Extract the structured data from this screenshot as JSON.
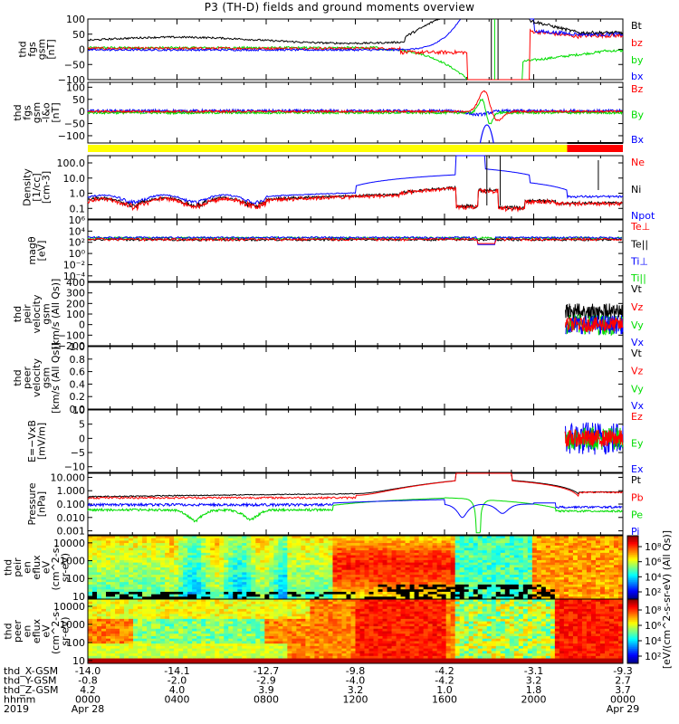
{
  "title": "P3 (TH-D) fields and ground moments overview",
  "colors": {
    "black": "#000000",
    "red": "#ff0000",
    "green": "#00dd00",
    "blue": "#0000ff",
    "yellow": "#ffff00"
  },
  "chart_data": [
    {
      "type": "line",
      "name": "fgs",
      "ylabel": [
        "thd",
        "fgs",
        "gsm",
        "[nT]"
      ],
      "ylim": [
        -100,
        100
      ],
      "yticks": [
        "100",
        "50",
        "0",
        "−50",
        "−100"
      ],
      "legend": [
        {
          "label": "Bt",
          "color": "black"
        },
        {
          "label": "bz",
          "color": "red"
        },
        {
          "label": "by",
          "color": "green"
        },
        {
          "label": "bx",
          "color": "blue"
        }
      ]
    },
    {
      "type": "line",
      "name": "fgs-dsl",
      "ylabel": [
        "thd",
        "fgs",
        "gsm",
        "-l&o",
        "[nT]"
      ],
      "ylim": [
        -130,
        120
      ],
      "yticks": [
        "100",
        "50",
        "0",
        "−50",
        "−100"
      ],
      "legend": [
        {
          "label": "Bz",
          "color": "red"
        },
        {
          "label": "By",
          "color": "green"
        },
        {
          "label": "Bx",
          "color": "blue"
        }
      ]
    },
    {
      "type": "line",
      "name": "density",
      "yscale": "log",
      "ylabel": [
        "Density",
        "[1/cc]",
        "[cm-3]"
      ],
      "ylim": [
        0.02,
        300
      ],
      "yticks": [
        "100.0",
        "10.0",
        "1.0",
        "0.1"
      ],
      "legend": [
        {
          "label": "Ne",
          "color": "red"
        },
        {
          "label": "Ni",
          "color": "black"
        },
        {
          "label": "Npot",
          "color": "blue"
        }
      ]
    },
    {
      "type": "line",
      "name": "temperature",
      "yscale": "log",
      "ylabel": [
        "magθ",
        "[eV]"
      ],
      "ylim": [
        1e-05,
        1000000
      ],
      "yticks": [
        "10⁶",
        "10⁴",
        "10²",
        "10⁰",
        "10⁻²",
        "10⁻⁴"
      ],
      "legend": [
        {
          "label": "Te⊥",
          "color": "red"
        },
        {
          "label": "Te||",
          "color": "black"
        },
        {
          "label": "Ti⊥",
          "color": "blue"
        },
        {
          "label": "Ti||",
          "color": "green"
        }
      ]
    },
    {
      "type": "line",
      "name": "peir-velocity",
      "ylabel": [
        "thd",
        "peir",
        "velocity",
        "gsm",
        "[km/s (All Qs)]"
      ],
      "ylim": [
        -200,
        400
      ],
      "yticks": [
        "400",
        "300",
        "200",
        "100",
        "0",
        "−100",
        "−200"
      ],
      "legend": [
        {
          "label": "Vt",
          "color": "black"
        },
        {
          "label": "Vz",
          "color": "red"
        },
        {
          "label": "Vy",
          "color": "green"
        },
        {
          "label": "Vx",
          "color": "blue"
        }
      ]
    },
    {
      "type": "line",
      "name": "peer-velocity",
      "ylabel": [
        "thd",
        "peer",
        "velocity",
        "gsm",
        "[km/s (All Qs)]"
      ],
      "ylim": [
        0,
        1
      ],
      "yticks": [
        "1.0",
        "0.8",
        "0.6",
        "0.4",
        "0.2",
        "0.0"
      ],
      "legend": [
        {
          "label": "Vt",
          "color": "black"
        },
        {
          "label": "Vz",
          "color": "red"
        },
        {
          "label": "Vy",
          "color": "green"
        },
        {
          "label": "Vx",
          "color": "blue"
        }
      ]
    },
    {
      "type": "line",
      "name": "efield",
      "ylabel": [
        "E=−VxB",
        "[mV/m]"
      ],
      "ylim": [
        -12,
        10
      ],
      "yticks": [
        "10",
        "5",
        "0",
        "−5",
        "−10"
      ],
      "legend": [
        {
          "label": "Ez",
          "color": "red"
        },
        {
          "label": "Ey",
          "color": "green"
        },
        {
          "label": "Ex",
          "color": "blue"
        }
      ]
    },
    {
      "type": "line",
      "name": "pressure",
      "yscale": "log",
      "ylabel": [
        "Pressure",
        "[nPa]"
      ],
      "ylim": [
        0.0005,
        20
      ],
      "yticks": [
        "10.000",
        "1.000",
        "0.100",
        "0.010",
        "0.001"
      ],
      "legend": [
        {
          "label": "Pt",
          "color": "black"
        },
        {
          "label": "Pb",
          "color": "red"
        },
        {
          "label": "Pe",
          "color": "green"
        },
        {
          "label": "Pi",
          "color": "blue"
        }
      ]
    },
    {
      "type": "heatmap",
      "name": "peir-en-eflux",
      "yscale": "log",
      "ylabel": [
        "thd",
        "peir",
        "en",
        "eflux",
        "eV",
        "(cm^2-s-",
        "sr-eV)"
      ],
      "ylim": [
        7,
        25000
      ],
      "yticks": [
        "10000",
        "1000",
        "100",
        "10"
      ]
    },
    {
      "type": "heatmap",
      "name": "peer-en-eflux",
      "yscale": "log",
      "ylabel": [
        "thd",
        "peer",
        "en",
        "eflux",
        "eV",
        "(cm^2-s-",
        "sr-eV)"
      ],
      "ylim": [
        7,
        25000
      ],
      "yticks": [
        "10000",
        "1000",
        "100",
        "10"
      ]
    }
  ],
  "colorbar": {
    "label": "[eV/(cm^2-s-sr-eV) (All Qs)]",
    "top_ticks": [
      "10⁸",
      "10⁶",
      "10⁴",
      "10²"
    ],
    "bottom_ticks": [
      "10⁸",
      "10⁶",
      "10⁴",
      "10²"
    ]
  },
  "time_axis": {
    "rows": [
      {
        "label": "thd_X-GSM",
        "values": [
          "-14.0",
          "-14.1",
          "-12.7",
          "-9.8",
          "-4.2",
          "-3.1",
          "-9.3"
        ]
      },
      {
        "label": "thd_Y-GSM",
        "values": [
          "-0.8",
          "-2.0",
          "-2.9",
          "-4.0",
          "-4.2",
          "3.2",
          "2.7"
        ]
      },
      {
        "label": "thd_Z-GSM",
        "values": [
          "4.2",
          "4.0",
          "3.9",
          "3.2",
          "1.0",
          "1.8",
          "3.7"
        ]
      },
      {
        "label": "hhmm",
        "values": [
          "0000",
          "0400",
          "0800",
          "1200",
          "1600",
          "2000",
          "0000"
        ]
      },
      {
        "label": "2019",
        "values": [
          "Apr 28",
          "",
          "",
          "",
          "",
          "",
          "Apr 29"
        ]
      }
    ]
  }
}
